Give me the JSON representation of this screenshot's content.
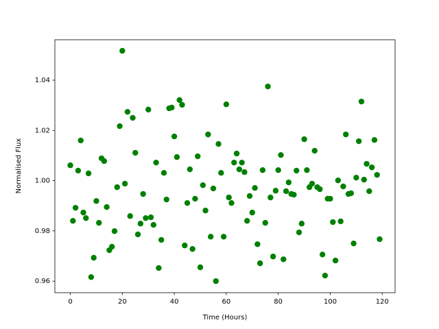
{
  "chart_data": {
    "type": "scatter",
    "xlabel": "Time (Hours)",
    "ylabel": "Normalised Flux",
    "grid": false,
    "xlim": [
      -5.95,
      124.95
    ],
    "ylim": [
      0.9554,
      1.0561
    ],
    "xticks": [
      0,
      20,
      40,
      60,
      80,
      100,
      120
    ],
    "yticks": [
      0.96,
      0.98,
      {
        "value": 1,
        "label": "1.00"
      },
      1.02,
      1.04
    ],
    "series": [
      {
        "color": "#008000",
        "x": [
          0,
          1,
          2,
          3,
          4,
          5,
          6,
          7,
          8,
          9,
          10,
          11,
          12,
          13,
          14,
          15,
          16,
          17,
          18,
          19,
          20,
          21,
          22,
          23,
          24,
          25,
          26,
          27,
          28,
          29,
          30,
          31,
          32,
          33,
          34,
          35,
          36,
          37,
          38,
          39,
          40,
          41,
          42,
          43,
          44,
          45,
          46,
          47,
          48,
          49,
          50,
          51,
          52,
          53,
          54,
          55,
          56,
          57,
          58,
          59,
          60,
          61,
          62,
          63,
          64,
          65,
          66,
          67,
          68,
          69,
          70,
          71,
          72,
          73,
          74,
          75,
          76,
          77,
          78,
          79,
          80,
          81,
          82,
          83,
          84,
          85,
          86,
          87,
          88,
          89,
          90,
          91,
          92,
          93,
          94,
          95,
          96,
          97,
          98,
          99,
          100,
          101,
          102,
          103,
          104,
          105,
          106,
          107,
          108,
          109,
          110,
          111,
          112,
          113,
          114,
          115,
          116,
          117,
          118,
          119
        ],
        "values": [
          1.0061,
          0.984,
          0.9892,
          1.004,
          1.016,
          0.9873,
          0.9851,
          1.0029,
          0.9616,
          0.9693,
          0.9919,
          0.9832,
          1.0089,
          1.0078,
          0.9895,
          0.9723,
          0.9737,
          0.9799,
          0.9974,
          1.0217,
          1.0517,
          0.9988,
          1.0274,
          0.9859,
          1.025,
          1.0111,
          0.9786,
          0.9829,
          0.9947,
          0.9851,
          1.0283,
          0.9854,
          0.9824,
          1.0072,
          0.9652,
          0.9764,
          1.0031,
          0.9925,
          1.0288,
          1.0291,
          1.0176,
          1.0094,
          1.0321,
          1.0302,
          0.9742,
          0.9911,
          1.0045,
          0.9728,
          0.9928,
          1.0097,
          0.9655,
          0.9982,
          0.9881,
          1.0184,
          0.9777,
          0.9969,
          0.96,
          1.0146,
          1.0031,
          0.9777,
          1.0304,
          0.9933,
          0.9911,
          1.0072,
          1.0108,
          1.0045,
          1.0072,
          1.0034,
          0.984,
          0.9939,
          0.9873,
          0.9971,
          0.9747,
          0.9671,
          1.0042,
          0.9832,
          1.0375,
          0.9933,
          0.9698,
          0.996,
          1.0042,
          1.0102,
          0.9687,
          0.9958,
          0.9993,
          0.9947,
          0.9944,
          1.004,
          0.9794,
          0.9829,
          1.0165,
          1.0042,
          0.9974,
          0.9988,
          1.0119,
          0.9974,
          0.9966,
          0.9706,
          0.9622,
          0.9928,
          0.9928,
          0.9835,
          0.9682,
          1.0001,
          0.9838,
          0.9977,
          1.0184,
          0.9947,
          0.995,
          0.975,
          1.0012,
          1.0157,
          1.0315,
          1.0004,
          1.0067,
          0.9958,
          1.0053,
          1.0162,
          1.0023,
          0.9767
        ]
      }
    ]
  }
}
